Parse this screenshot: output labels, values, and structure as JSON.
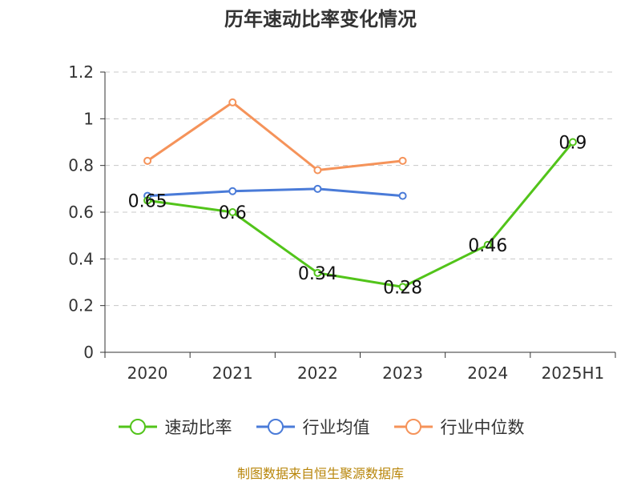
{
  "chart_data": {
    "type": "line",
    "title": "历年速动比率变化情况",
    "categories": [
      "2020",
      "2021",
      "2022",
      "2023",
      "2024",
      "2025H1"
    ],
    "ylim": [
      0,
      1.2
    ],
    "yticks": [
      "0",
      "0.2",
      "0.4",
      "0.6",
      "0.8",
      "1",
      "1.2"
    ],
    "grid": true,
    "legend_position": "bottom",
    "series": [
      {
        "name": "速动比率",
        "color": "#52c41a",
        "values": [
          0.65,
          0.6,
          0.34,
          0.28,
          0.46,
          0.9
        ],
        "labels": [
          "0.65",
          "0.6",
          "0.34",
          "0.28",
          "0.46",
          "0.9"
        ]
      },
      {
        "name": "行业均值",
        "color": "#4a7bd8",
        "values": [
          0.67,
          0.69,
          0.7,
          0.67,
          null,
          null
        ]
      },
      {
        "name": "行业中位数",
        "color": "#f5935a",
        "values": [
          0.82,
          1.07,
          0.78,
          0.82,
          null,
          null
        ]
      }
    ]
  },
  "source": "制图数据来自恒生聚源数据库"
}
